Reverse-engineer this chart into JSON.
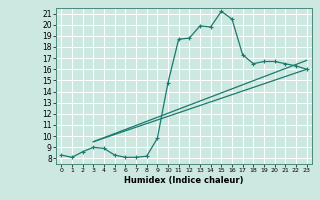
{
  "xlabel": "Humidex (Indice chaleur)",
  "bg_color": "#cce8e0",
  "grid_color": "#ffffff",
  "line_color": "#1a7a6e",
  "xlim": [
    -0.5,
    23.5
  ],
  "ylim": [
    7.5,
    21.5
  ],
  "x_ticks": [
    0,
    1,
    2,
    3,
    4,
    5,
    6,
    7,
    8,
    9,
    10,
    11,
    12,
    13,
    14,
    15,
    16,
    17,
    18,
    19,
    20,
    21,
    22,
    23
  ],
  "yticks": [
    8,
    9,
    10,
    11,
    12,
    13,
    14,
    15,
    16,
    17,
    18,
    19,
    20,
    21
  ],
  "line1_x": [
    0,
    1,
    2,
    3,
    4,
    5,
    6,
    7,
    8,
    9,
    10,
    11,
    12,
    13,
    14,
    15,
    16,
    17,
    18,
    19,
    20,
    21,
    22,
    23
  ],
  "line1_y": [
    8.3,
    8.1,
    8.6,
    9.0,
    8.9,
    8.3,
    8.1,
    8.1,
    8.2,
    9.8,
    14.8,
    18.7,
    18.8,
    19.9,
    19.8,
    21.2,
    20.5,
    17.3,
    16.5,
    16.7,
    16.7,
    16.5,
    16.3,
    16.0
  ],
  "line2_x": [
    3,
    23
  ],
  "line2_y": [
    9.5,
    16.8
  ],
  "line3_x": [
    3,
    23
  ],
  "line3_y": [
    9.5,
    16.0
  ]
}
